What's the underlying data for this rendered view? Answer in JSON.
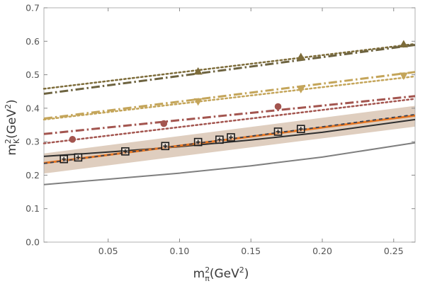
{
  "chart_data": {
    "type": "line",
    "title": "",
    "xlabel": {
      "base": "m",
      "sup": "2",
      "sub": "π",
      "unit_open": "(GeV",
      "unit_sup": "2",
      "unit_close": ")"
    },
    "ylabel": {
      "base": "m",
      "sup": "2",
      "sub": "K",
      "unit_open": "(GeV",
      "unit_sup": "2",
      "unit_close": ")"
    },
    "xlim": [
      0.005,
      0.265
    ],
    "ylim": [
      0.0,
      0.7
    ],
    "x_ticks": [
      "0.05",
      "0.10",
      "0.15",
      "0.20",
      "0.25"
    ],
    "x_tick_values": [
      0.05,
      0.1,
      0.15,
      0.2,
      0.25
    ],
    "y_ticks": [
      "0.0",
      "0.1",
      "0.2",
      "0.3",
      "0.4",
      "0.5",
      "0.6",
      "0.7"
    ],
    "y_tick_values": [
      0.0,
      0.1,
      0.2,
      0.3,
      0.4,
      0.5,
      0.6,
      0.7
    ],
    "band": {
      "name": "uncertainty band",
      "color": "#c9ad94",
      "x": [
        0.005,
        0.265
      ],
      "lower": [
        0.205,
        0.345
      ],
      "upper": [
        0.265,
        0.407
      ]
    },
    "series": [
      {
        "name": "grey curve",
        "kind": "line",
        "style": "solid",
        "color": "#7f7f7f",
        "width": 2,
        "x": [
          0.005,
          0.05,
          0.1,
          0.15,
          0.2,
          0.265
        ],
        "y": [
          0.172,
          0.188,
          0.206,
          0.228,
          0.254,
          0.297
        ]
      },
      {
        "name": "black curve",
        "kind": "line",
        "style": "solid",
        "color": "#2f2f2f",
        "width": 2,
        "x": [
          0.005,
          0.05,
          0.1,
          0.15,
          0.2,
          0.265
        ],
        "y": [
          0.256,
          0.269,
          0.285,
          0.305,
          0.328,
          0.366
        ]
      },
      {
        "name": "orange fit",
        "kind": "line",
        "style": "solid",
        "color": "#e87722",
        "width": 3,
        "x": [
          0.005,
          0.265
        ],
        "y": [
          0.236,
          0.378
        ]
      },
      {
        "name": "dashed fit",
        "kind": "line",
        "style": "dashed",
        "color": "#3c4150",
        "width": 1.8,
        "x": [
          0.005,
          0.265
        ],
        "y": [
          0.235,
          0.381
        ]
      },
      {
        "name": "brown dotted",
        "kind": "line",
        "style": "dotted",
        "color": "#a3554f",
        "width": 2.5,
        "x": [
          0.005,
          0.265
        ],
        "y": [
          0.295,
          0.428
        ]
      },
      {
        "name": "brown dash-dot",
        "kind": "line",
        "style": "dashdot",
        "color": "#a3554f",
        "width": 3,
        "x": [
          0.005,
          0.265
        ],
        "y": [
          0.323,
          0.436
        ]
      },
      {
        "name": "khaki dotted",
        "kind": "line",
        "style": "dotted",
        "color": "#c4a55a",
        "width": 2.5,
        "x": [
          0.005,
          0.265
        ],
        "y": [
          0.366,
          0.495
        ]
      },
      {
        "name": "khaki dash-dot",
        "kind": "line",
        "style": "dashdot",
        "color": "#c4a55a",
        "width": 3,
        "x": [
          0.005,
          0.265
        ],
        "y": [
          0.369,
          0.508
        ]
      },
      {
        "name": "olive dotted",
        "kind": "line",
        "style": "dotted",
        "color": "#7d6c3a",
        "width": 2.5,
        "x": [
          0.005,
          0.265
        ],
        "y": [
          0.458,
          0.592
        ]
      },
      {
        "name": "olive dash-dot",
        "kind": "line",
        "style": "dashdot",
        "color": "#6d6340",
        "width": 3,
        "x": [
          0.005,
          0.265
        ],
        "y": [
          0.443,
          0.589
        ]
      }
    ],
    "points": [
      {
        "name": "lattice squares",
        "marker": "boxed-cross",
        "color": "#1a1a1a",
        "x": [
          0.019,
          0.029,
          0.062,
          0.09,
          0.113,
          0.128,
          0.136,
          0.169,
          0.185
        ],
        "y": [
          0.248,
          0.253,
          0.271,
          0.287,
          0.299,
          0.306,
          0.313,
          0.33,
          0.338
        ]
      },
      {
        "name": "brown circles",
        "marker": "circle",
        "color": "#a3554f",
        "x": [
          0.025,
          0.089,
          0.169
        ],
        "y": [
          0.307,
          0.354,
          0.405
        ]
      },
      {
        "name": "khaki triangles down",
        "marker": "triangle-down",
        "color": "#c4a55a",
        "x": [
          0.113,
          0.185,
          0.257
        ],
        "y": [
          0.42,
          0.457,
          0.497
        ]
      },
      {
        "name": "olive triangles up",
        "marker": "triangle-up",
        "color": "#7d6c3a",
        "x": [
          0.113,
          0.185,
          0.257
        ],
        "y": [
          0.51,
          0.553,
          0.591
        ]
      }
    ]
  }
}
